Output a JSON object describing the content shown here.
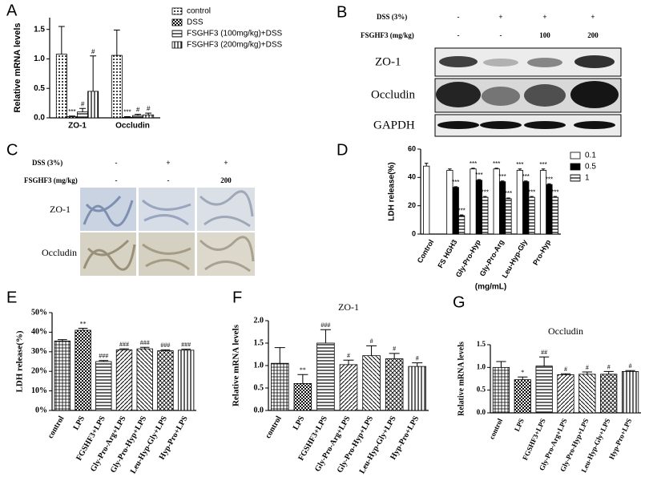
{
  "panel_labels": [
    "A",
    "B",
    "C",
    "D",
    "E",
    "F",
    "G"
  ],
  "blot": {
    "rows": [
      {
        "label": "DSS (3%)",
        "marks": [
          "-",
          "+",
          "+",
          "+"
        ]
      },
      {
        "label": "FSGHF3 (mg/kg)",
        "marks": [
          "-",
          "-",
          "100",
          "200"
        ]
      }
    ],
    "bands": [
      "ZO-1",
      "Occludin",
      "GAPDH"
    ]
  },
  "histology": {
    "rows": [
      {
        "label": "DSS (3%)",
        "marks": [
          "-",
          "+",
          "+"
        ]
      },
      {
        "label": "FSGHF3 (mg/kg)",
        "marks": [
          "-",
          "-",
          "200"
        ]
      }
    ],
    "stains": [
      "ZO-1",
      "Occludin"
    ]
  },
  "chart_data": [
    {
      "type": "bar",
      "y_label": "Relative mRNA levels",
      "categories": [
        "ZO-1",
        "Occludin"
      ],
      "legend": "right",
      "ylim": [
        0,
        1.7
      ],
      "yticks": [
        {
          "value": 0,
          "label": "0.0"
        },
        0.5,
        {
          "value": 1,
          "label": "1.0"
        },
        1.5
      ],
      "series": [
        {
          "name": "control",
          "pattern": "dots",
          "values": [
            1.08,
            1.06
          ],
          "errors": [
            0.47,
            0.43
          ],
          "labels": [
            null,
            null
          ]
        },
        {
          "name": "DSS",
          "pattern": "checks",
          "values": [
            0.02,
            0.01
          ],
          "errors": [
            0.01,
            0.01
          ],
          "labels": [
            "***",
            "***"
          ]
        },
        {
          "name": "FSGHF3 (100mg/kg)+DSS",
          "pattern": "hlines",
          "values": [
            0.1,
            0.04
          ],
          "errors": [
            0.06,
            0.02
          ],
          "labels": [
            "#",
            "#"
          ]
        },
        {
          "name": "FSGHF3 (200mg/kg)+DSS",
          "pattern": "vlines",
          "values": [
            0.45,
            0.05
          ],
          "errors": [
            0.6,
            0.03
          ],
          "labels": [
            "#",
            "#"
          ]
        }
      ]
    },
    {
      "type": "bar",
      "y_label": "LDH release(%)",
      "x_label": "(mg/mL)",
      "legend": "right",
      "categories": [
        "Control",
        "FS HGH3",
        "Gly-Pro-Hyp",
        "Gly-Pro-Arg",
        "Leu-Hyp-Gly",
        "Pro-Hyp"
      ],
      "ylim": [
        0,
        60
      ],
      "yticks": [
        0,
        20,
        40,
        60
      ],
      "series": [
        {
          "name": "0.1",
          "pattern": "white",
          "values": [
            48,
            45,
            46,
            46,
            45,
            45
          ],
          "errors": [
            2,
            1,
            0.5,
            0.5,
            1,
            1
          ],
          "labels": [
            null,
            null,
            "***",
            "***",
            "***",
            "***"
          ]
        },
        {
          "name": "0.5",
          "pattern": "black",
          "values": [
            null,
            33,
            38,
            37,
            37,
            35
          ],
          "errors": [
            null,
            0.5,
            0.5,
            0.5,
            0.5,
            0.5
          ],
          "labels": [
            null,
            "***",
            "***",
            "***",
            "***",
            "***"
          ]
        },
        {
          "name": "1",
          "pattern": "hlines",
          "values": [
            null,
            13,
            26,
            25,
            26,
            26
          ],
          "errors": [
            null,
            0.5,
            0.5,
            0.5,
            0.5,
            0.5
          ],
          "labels": [
            null,
            "***",
            "***",
            "***",
            "***",
            "***"
          ]
        }
      ]
    },
    {
      "type": "bar",
      "y_label": "LDH release(%)",
      "categories": [
        "control",
        "LPS",
        "FGSHF3+LPS",
        "Gly-Pro-Arg+LPS",
        "Gly-Pro-Hyp+LPS",
        "Leu-Hyp-Gly+LPS",
        "Hyp-Pro+LPS"
      ],
      "ylim": [
        0,
        50
      ],
      "yticks": [
        {
          "value": 0,
          "label": "0%"
        },
        {
          "value": 10,
          "label": "10%"
        },
        {
          "value": 20,
          "label": "20%"
        },
        {
          "value": 30,
          "label": "30%"
        },
        {
          "value": 40,
          "label": "40%"
        },
        {
          "value": 50,
          "label": "50%"
        }
      ],
      "series": [
        {
          "patterns": [
            "grid",
            "checks",
            "hlines",
            "diag",
            "diag2",
            "crossdiag",
            "vlines"
          ],
          "values": [
            35.5,
            41,
            25,
            31,
            31.5,
            30.5,
            30.8
          ],
          "errors": [
            0.7,
            1,
            0.5,
            0.5,
            0.8,
            0.5,
            0.5
          ],
          "labels": [
            null,
            "**",
            "###",
            "###",
            "###",
            "###",
            "###"
          ]
        }
      ]
    },
    {
      "type": "bar",
      "title": "ZO-1",
      "y_label": "Relative mRNA levels",
      "categories": [
        "control",
        "LPS",
        "FGSHF3+LPS",
        "Gly-Pro-Arg+LPS",
        "Gly-Pro-Hyp+LPS",
        "Leu-Hyp-Gly+LPS",
        "Hyp-Pro+LPS"
      ],
      "ylim": [
        0,
        2
      ],
      "yticks": [
        {
          "value": 0,
          "label": "0.0"
        },
        0.5,
        {
          "value": 1,
          "label": "1.0"
        },
        1.5,
        {
          "value": 2,
          "label": "2.0"
        }
      ],
      "series": [
        {
          "patterns": [
            "grid",
            "checks",
            "hlines",
            "diag",
            "diag2",
            "crossdiag",
            "vlines"
          ],
          "values": [
            1.05,
            0.6,
            1.5,
            1.02,
            1.22,
            1.15,
            0.98
          ],
          "errors": [
            0.35,
            0.2,
            0.3,
            0.1,
            0.22,
            0.12,
            0.08
          ],
          "labels": [
            null,
            "**",
            "###",
            "#",
            "#",
            "#",
            "#"
          ]
        }
      ]
    },
    {
      "type": "bar",
      "title": "Occludin",
      "y_label": "Relative mRNA levels",
      "categories": [
        "control",
        "LPS",
        "FGSHF3+LPS",
        "Gly-Pro-Arg+LPS",
        "Gly-Pro-Hyp+LPS",
        "Leu-Hyp-Gly+LPS",
        "Hyp-Pro+LPS"
      ],
      "ylim": [
        0,
        1.5
      ],
      "yticks": [
        {
          "value": 0,
          "label": "0.0"
        },
        0.5,
        {
          "value": 1,
          "label": "1.0"
        },
        1.5
      ],
      "series": [
        {
          "patterns": [
            "grid",
            "checks",
            "hlines",
            "diag",
            "diag2",
            "crossdiag",
            "vlines"
          ],
          "values": [
            1.0,
            0.73,
            1.03,
            0.84,
            0.85,
            0.85,
            0.91
          ],
          "errors": [
            0.13,
            0.06,
            0.2,
            0.02,
            0.05,
            0.06,
            0.02
          ],
          "labels": [
            null,
            "*",
            "##",
            "#",
            "#",
            "#",
            "#"
          ]
        }
      ]
    }
  ]
}
